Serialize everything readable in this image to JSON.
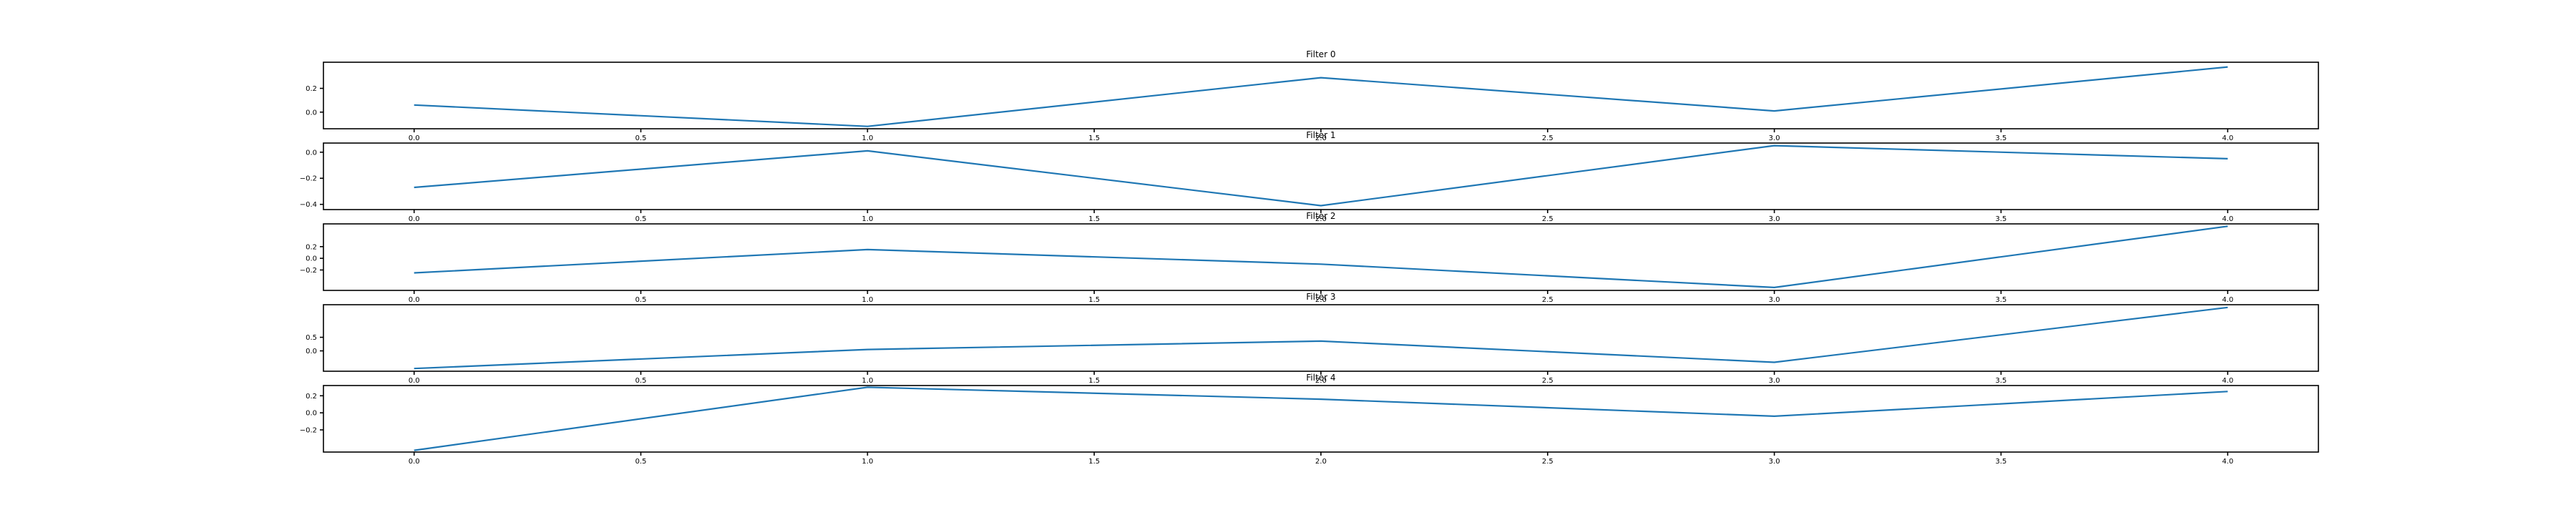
{
  "chart_data": [
    {
      "type": "line",
      "title": "Filter 0",
      "x": [
        0,
        1,
        2,
        3,
        4
      ],
      "values": [
        0.06,
        -0.12,
        0.29,
        0.01,
        0.38
      ],
      "ylim": [
        -0.14,
        0.42
      ],
      "yticks": [
        "0.0",
        "0.2"
      ],
      "ytick_values": [
        0.0,
        0.2
      ],
      "xlim": [
        -0.2,
        4.2
      ],
      "xticks": [
        "0.0",
        "0.5",
        "1.0",
        "1.5",
        "2.0",
        "2.5",
        "3.0",
        "3.5",
        "4.0"
      ],
      "xtick_values": [
        0,
        0.5,
        1,
        1.5,
        2,
        2.5,
        3,
        3.5,
        4
      ],
      "color": "#1f77b4",
      "grid": false,
      "legend": "none"
    },
    {
      "type": "line",
      "title": "Filter 1",
      "x": [
        0,
        1,
        2,
        3,
        4
      ],
      "values": [
        -0.27,
        0.01,
        -0.41,
        0.05,
        -0.05
      ],
      "ylim": [
        -0.44,
        0.07
      ],
      "yticks": [
        "−0.4",
        "−0.2",
        "0.0"
      ],
      "ytick_values": [
        -0.4,
        -0.2,
        0.0
      ],
      "xlim": [
        -0.2,
        4.2
      ],
      "xticks": [
        "0.0",
        "0.5",
        "1.0",
        "1.5",
        "2.0",
        "2.5",
        "3.0",
        "3.5",
        "4.0"
      ],
      "xtick_values": [
        0,
        0.5,
        1,
        1.5,
        2,
        2.5,
        3,
        3.5,
        4
      ],
      "color": "#1f77b4",
      "grid": false,
      "legend": "none"
    },
    {
      "type": "line",
      "title": "Filter 2",
      "x": [
        0,
        1,
        2,
        3,
        4
      ],
      "values": [
        -0.25,
        0.15,
        -0.1,
        -0.5,
        0.55
      ],
      "ylim": [
        -0.55,
        0.59
      ],
      "yticks": [
        "−0.2",
        "0.0",
        "0.2"
      ],
      "ytick_values": [
        -0.2,
        0.0,
        0.2
      ],
      "xlim": [
        -0.2,
        4.2
      ],
      "xticks": [
        "0.0",
        "0.5",
        "1.0",
        "1.5",
        "2.0",
        "2.5",
        "3.0",
        "3.5",
        "4.0"
      ],
      "xtick_values": [
        0,
        0.5,
        1,
        1.5,
        2,
        2.5,
        3,
        3.5,
        4
      ],
      "color": "#1f77b4",
      "grid": false,
      "legend": "none"
    },
    {
      "type": "line",
      "title": "Filter 3",
      "x": [
        0,
        1,
        2,
        3,
        4
      ],
      "values": [
        -0.65,
        0.05,
        0.36,
        -0.42,
        1.6
      ],
      "ylim": [
        -0.75,
        1.7
      ],
      "yticks": [
        "0.0",
        "0.5"
      ],
      "ytick_values": [
        0.0,
        0.5
      ],
      "xlim": [
        -0.2,
        4.2
      ],
      "xticks": [
        "0.0",
        "0.5",
        "1.0",
        "1.5",
        "2.0",
        "2.5",
        "3.0",
        "3.5",
        "4.0"
      ],
      "xtick_values": [
        0,
        0.5,
        1,
        1.5,
        2,
        2.5,
        3,
        3.5,
        4
      ],
      "color": "#1f77b4",
      "grid": false,
      "legend": "none"
    },
    {
      "type": "line",
      "title": "Filter 4",
      "x": [
        0,
        1,
        2,
        3,
        4
      ],
      "values": [
        -0.44,
        0.3,
        0.16,
        -0.04,
        0.25
      ],
      "ylim": [
        -0.46,
        0.32
      ],
      "yticks": [
        "−0.2",
        "0.0",
        "0.2"
      ],
      "ytick_values": [
        -0.2,
        0.0,
        0.2
      ],
      "xlim": [
        -0.2,
        4.2
      ],
      "xticks": [
        "0.0",
        "0.5",
        "1.0",
        "1.5",
        "2.0",
        "2.5",
        "3.0",
        "3.5",
        "4.0"
      ],
      "xtick_values": [
        0,
        0.5,
        1,
        1.5,
        2,
        2.5,
        3,
        3.5,
        4
      ],
      "color": "#1f77b4",
      "grid": false,
      "legend": "none"
    }
  ]
}
